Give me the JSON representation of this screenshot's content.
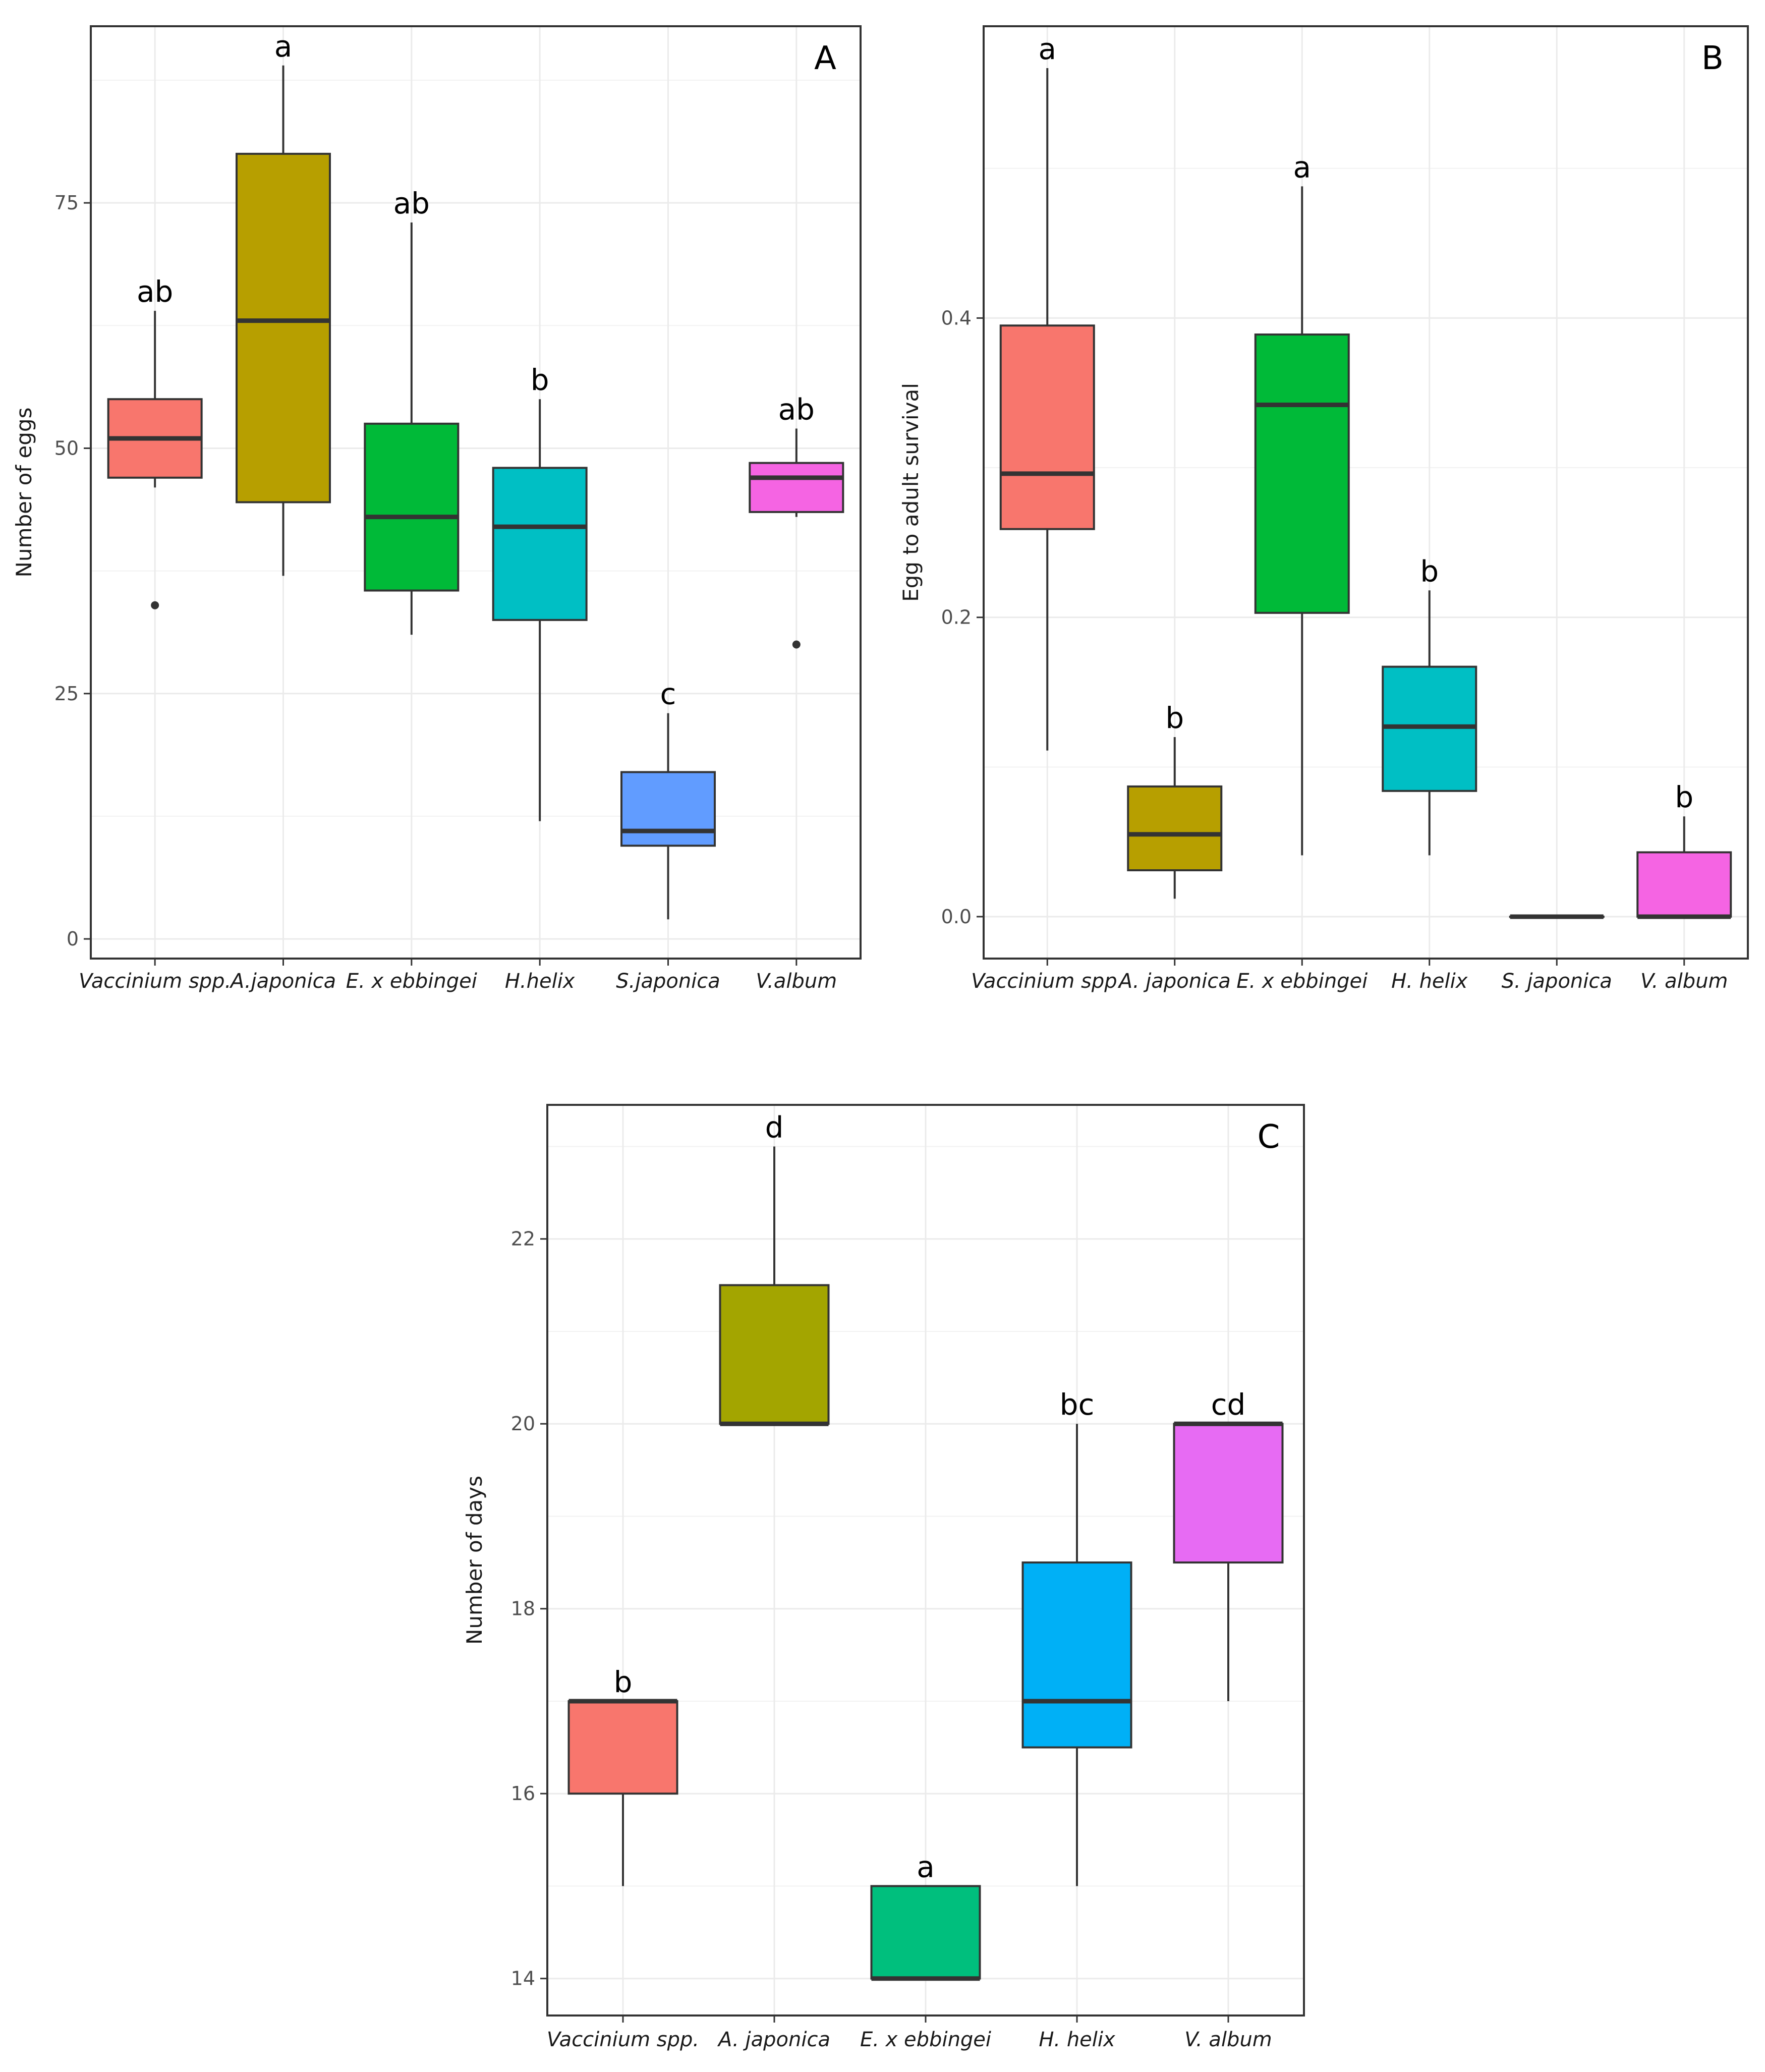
{
  "chart_data": [
    {
      "type": "box",
      "panel_label": "A",
      "ylabel": "Number of eggs",
      "ylim": [
        -2,
        93
      ],
      "yticks": [
        0,
        25,
        50,
        75
      ],
      "categories": [
        "Vaccinium spp.",
        "A.japonica",
        "E. x ebbingei",
        "H.helix",
        "S.japonica",
        "V.album"
      ],
      "boxes": [
        {
          "name": "Vaccinium spp.",
          "color": "#F8766D",
          "whisker_low": 46,
          "q1": 47,
          "median": 51,
          "q3": 55,
          "whisker_high": 64,
          "outliers": [
            34
          ],
          "letter": "ab"
        },
        {
          "name": "A.japonica",
          "color": "#B79F00",
          "whisker_low": 37,
          "q1": 44.5,
          "median": 63,
          "q3": 80,
          "whisker_high": 89,
          "outliers": [],
          "letter": "a"
        },
        {
          "name": "E. x ebbingei",
          "color": "#00BA38",
          "whisker_low": 31,
          "q1": 35.5,
          "median": 43,
          "q3": 52.5,
          "whisker_high": 73,
          "outliers": [],
          "letter": "ab"
        },
        {
          "name": "H.helix",
          "color": "#00BFC4",
          "whisker_low": 12,
          "q1": 32.5,
          "median": 42,
          "q3": 48,
          "whisker_high": 55,
          "outliers": [],
          "letter": "b"
        },
        {
          "name": "S.japonica",
          "color": "#619CFF",
          "whisker_low": 2,
          "q1": 9.5,
          "median": 11,
          "q3": 17,
          "whisker_high": 23,
          "outliers": [],
          "letter": "c"
        },
        {
          "name": "V.album",
          "color": "#F564E3",
          "whisker_low": 43,
          "q1": 43.5,
          "median": 47,
          "q3": 48.5,
          "whisker_high": 52,
          "outliers": [
            30
          ],
          "letter": "ab"
        }
      ]
    },
    {
      "type": "box",
      "panel_label": "B",
      "ylabel": "Egg to adult survival",
      "ylim": [
        -0.028,
        0.595
      ],
      "yticks": [
        0.0,
        0.2,
        0.4
      ],
      "ytick_labels": [
        "0.0",
        "0.2",
        "0.4"
      ],
      "categories": [
        "Vaccinium spp.",
        "A. japonica",
        "E. x ebbingei",
        "H. helix",
        "S. japonica",
        "V. album"
      ],
      "boxes": [
        {
          "name": "Vaccinium spp.",
          "color": "#F8766D",
          "whisker_low": 0.111,
          "q1": 0.259,
          "median": 0.296,
          "q3": 0.395,
          "whisker_high": 0.567,
          "outliers": [],
          "letter": "a"
        },
        {
          "name": "A. japonica",
          "color": "#B79F00",
          "whisker_low": 0.012,
          "q1": 0.031,
          "median": 0.055,
          "q3": 0.087,
          "whisker_high": 0.12,
          "outliers": [],
          "letter": "b"
        },
        {
          "name": "E. x ebbingei",
          "color": "#00BA38",
          "whisker_low": 0.041,
          "q1": 0.203,
          "median": 0.342,
          "q3": 0.389,
          "whisker_high": 0.488,
          "outliers": [],
          "letter": "a"
        },
        {
          "name": "H. helix",
          "color": "#00BFC4",
          "whisker_low": 0.041,
          "q1": 0.084,
          "median": 0.127,
          "q3": 0.167,
          "whisker_high": 0.218,
          "outliers": [],
          "letter": "b"
        },
        {
          "name": "S. japonica",
          "color": "#619CFF",
          "whisker_low": 0.0,
          "q1": 0.0,
          "median": 0.0,
          "q3": 0.0,
          "whisker_high": 0.0,
          "outliers": [],
          "letter": ""
        },
        {
          "name": "V. album",
          "color": "#F564E3",
          "whisker_low": 0.0,
          "q1": 0.0,
          "median": 0.0,
          "q3": 0.043,
          "whisker_high": 0.067,
          "outliers": [],
          "letter": "b"
        }
      ]
    },
    {
      "type": "box",
      "panel_label": "C",
      "ylabel": "Number of days",
      "ylim": [
        13.6,
        23.45
      ],
      "yticks": [
        14,
        16,
        18,
        20,
        22
      ],
      "categories": [
        "Vaccinium spp.",
        "A. japonica",
        "E. x ebbingei",
        "H. helix",
        "V. album"
      ],
      "boxes": [
        {
          "name": "Vaccinium spp.",
          "color": "#F8766D",
          "whisker_low": 15,
          "q1": 16,
          "median": 17,
          "q3": 17,
          "whisker_high": 17,
          "outliers": [],
          "letter": "b"
        },
        {
          "name": "A. japonica",
          "color": "#A3A500",
          "whisker_low": 20,
          "q1": 20,
          "median": 20,
          "q3": 21.5,
          "whisker_high": 23,
          "outliers": [],
          "letter": "d"
        },
        {
          "name": "E. x ebbingei",
          "color": "#00BF7D",
          "whisker_low": 14,
          "q1": 14,
          "median": 14,
          "q3": 15,
          "whisker_high": 15,
          "outliers": [],
          "letter": "a"
        },
        {
          "name": "H. helix",
          "color": "#00B0F6",
          "whisker_low": 15,
          "q1": 16.5,
          "median": 17,
          "q3": 18.5,
          "whisker_high": 20,
          "outliers": [],
          "letter": "bc"
        },
        {
          "name": "V. album",
          "color": "#E76BF3",
          "whisker_low": 17,
          "q1": 18.5,
          "median": 20,
          "q3": 20,
          "whisker_high": 20,
          "outliers": [],
          "letter": "cd"
        }
      ]
    }
  ]
}
